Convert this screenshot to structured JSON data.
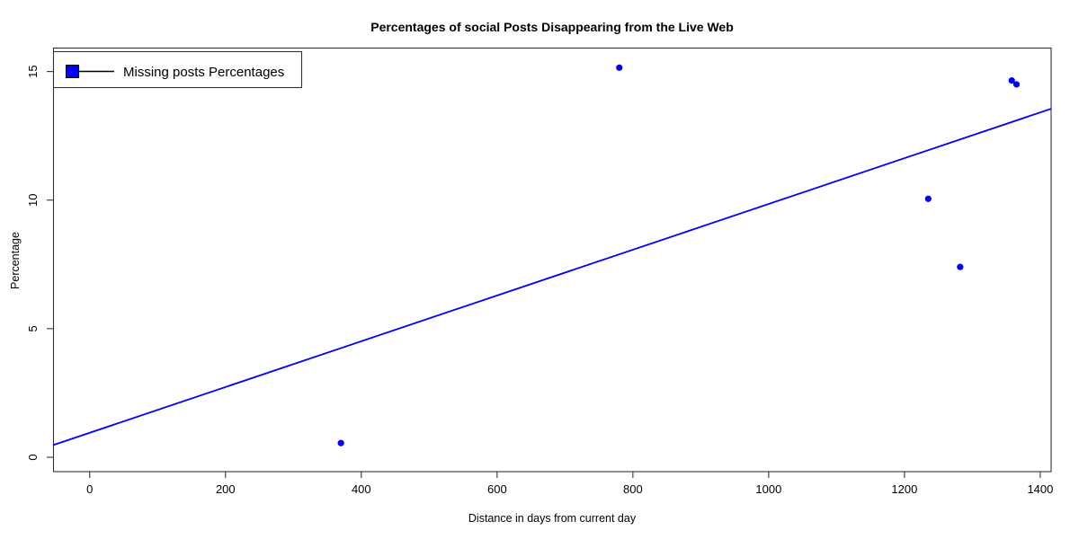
{
  "chart_data": {
    "type": "scatter",
    "title": "Percentages of social Posts Disappearing from the Live Web",
    "xlabel": "Distance in days from current day",
    "ylabel": "Percentage",
    "x_ticks": [
      0,
      200,
      400,
      600,
      800,
      1000,
      1200,
      1400
    ],
    "y_ticks": [
      0,
      5,
      10,
      15
    ],
    "x_range": [
      -54,
      1416
    ],
    "y_range": [
      -0.56,
      15.93
    ],
    "grid": false,
    "frame_color": "#333333",
    "legend": {
      "position": "topleft",
      "label": "Missing posts Percentages",
      "marker_color": "#0000ff",
      "line_color": "#000000"
    },
    "series": [
      {
        "name": "Missing posts Percentages",
        "color": "#0000ff",
        "points": [
          {
            "x": 370,
            "y": 0.55
          },
          {
            "x": 780,
            "y": 15.15
          },
          {
            "x": 1235,
            "y": 10.05
          },
          {
            "x": 1282,
            "y": 7.4
          },
          {
            "x": 1358,
            "y": 14.65
          },
          {
            "x": 1365,
            "y": 14.5
          }
        ]
      }
    ],
    "trend_line": {
      "slope": 0.0089,
      "intercept": 0.95,
      "color": "#0000ff"
    }
  }
}
